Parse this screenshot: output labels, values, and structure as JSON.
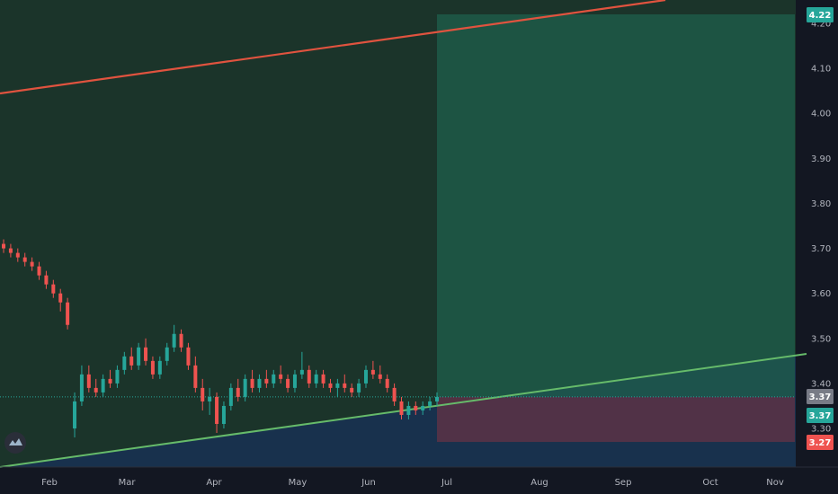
{
  "colors": {
    "background": "#131722",
    "up": "#26a69a",
    "down": "#ef5350",
    "resistance": "#e0533f",
    "support": "#66bb6a",
    "target_zone": "#1f5f4c",
    "stop_zone": "#5c3346",
    "price_line": "#26a69a"
  },
  "logo": {
    "name": "tradingview-logo-icon"
  },
  "chart_data": {
    "type": "candlestick",
    "title": "",
    "x_ticks": [
      "Feb",
      "Mar",
      "Apr",
      "May",
      "Jun",
      "Jul",
      "Aug",
      "Sep",
      "Oct",
      "Nov"
    ],
    "y_ticks": [
      "3.30",
      "3.40",
      "3.50",
      "3.60",
      "3.70",
      "3.80",
      "3.90",
      "4.00",
      "4.10",
      "4.20"
    ],
    "y_range": [
      3.24,
      4.24
    ],
    "grid": false,
    "price_labels": [
      {
        "value": "4.22",
        "role": "target",
        "color": "#26a69a"
      },
      {
        "value": "3.37",
        "role": "current",
        "color": "#787b86"
      },
      {
        "value": "3.37",
        "role": "entry",
        "color": "#26a69a"
      },
      {
        "value": "3.27",
        "role": "stop",
        "color": "#ef5350"
      }
    ],
    "trendlines": [
      {
        "name": "resistance",
        "x": [
          "Jan",
          "Sep"
        ],
        "y": [
          4.04,
          4.24
        ]
      },
      {
        "name": "support",
        "x": [
          "Jan",
          "Nov"
        ],
        "y": [
          3.24,
          3.47
        ]
      }
    ],
    "position_zone": {
      "entry": 3.37,
      "target": 4.22,
      "stop": 3.27,
      "from": "Jun",
      "to": "Nov"
    },
    "candles": [
      {
        "o": 3.71,
        "h": 3.72,
        "l": 3.69,
        "c": 3.7
      },
      {
        "o": 3.7,
        "h": 3.71,
        "l": 3.68,
        "c": 3.69
      },
      {
        "o": 3.69,
        "h": 3.7,
        "l": 3.67,
        "c": 3.68
      },
      {
        "o": 3.68,
        "h": 3.69,
        "l": 3.66,
        "c": 3.67
      },
      {
        "o": 3.67,
        "h": 3.68,
        "l": 3.65,
        "c": 3.66
      },
      {
        "o": 3.66,
        "h": 3.67,
        "l": 3.63,
        "c": 3.64
      },
      {
        "o": 3.64,
        "h": 3.65,
        "l": 3.61,
        "c": 3.62
      },
      {
        "o": 3.62,
        "h": 3.63,
        "l": 3.59,
        "c": 3.6
      },
      {
        "o": 3.6,
        "h": 3.61,
        "l": 3.56,
        "c": 3.58
      },
      {
        "o": 3.58,
        "h": 3.59,
        "l": 3.52,
        "c": 3.53
      },
      {
        "o": 3.3,
        "h": 3.38,
        "l": 3.28,
        "c": 3.36
      },
      {
        "o": 3.36,
        "h": 3.44,
        "l": 3.35,
        "c": 3.42
      },
      {
        "o": 3.42,
        "h": 3.44,
        "l": 3.38,
        "c": 3.39
      },
      {
        "o": 3.39,
        "h": 3.41,
        "l": 3.37,
        "c": 3.38
      },
      {
        "o": 3.38,
        "h": 3.42,
        "l": 3.37,
        "c": 3.41
      },
      {
        "o": 3.41,
        "h": 3.43,
        "l": 3.39,
        "c": 3.4
      },
      {
        "o": 3.4,
        "h": 3.44,
        "l": 3.39,
        "c": 3.43
      },
      {
        "o": 3.43,
        "h": 3.47,
        "l": 3.42,
        "c": 3.46
      },
      {
        "o": 3.46,
        "h": 3.48,
        "l": 3.43,
        "c": 3.44
      },
      {
        "o": 3.44,
        "h": 3.49,
        "l": 3.43,
        "c": 3.48
      },
      {
        "o": 3.48,
        "h": 3.5,
        "l": 3.44,
        "c": 3.45
      },
      {
        "o": 3.45,
        "h": 3.46,
        "l": 3.41,
        "c": 3.42
      },
      {
        "o": 3.42,
        "h": 3.46,
        "l": 3.41,
        "c": 3.45
      },
      {
        "o": 3.45,
        "h": 3.49,
        "l": 3.44,
        "c": 3.48
      },
      {
        "o": 3.48,
        "h": 3.53,
        "l": 3.47,
        "c": 3.51
      },
      {
        "o": 3.51,
        "h": 3.52,
        "l": 3.47,
        "c": 3.48
      },
      {
        "o": 3.48,
        "h": 3.49,
        "l": 3.43,
        "c": 3.44
      },
      {
        "o": 3.44,
        "h": 3.46,
        "l": 3.38,
        "c": 3.39
      },
      {
        "o": 3.39,
        "h": 3.41,
        "l": 3.34,
        "c": 3.36
      },
      {
        "o": 3.36,
        "h": 3.39,
        "l": 3.33,
        "c": 3.37
      },
      {
        "o": 3.37,
        "h": 3.38,
        "l": 3.29,
        "c": 3.31
      },
      {
        "o": 3.31,
        "h": 3.36,
        "l": 3.3,
        "c": 3.35
      },
      {
        "o": 3.35,
        "h": 3.4,
        "l": 3.34,
        "c": 3.39
      },
      {
        "o": 3.39,
        "h": 3.41,
        "l": 3.36,
        "c": 3.37
      },
      {
        "o": 3.37,
        "h": 3.42,
        "l": 3.36,
        "c": 3.41
      },
      {
        "o": 3.41,
        "h": 3.43,
        "l": 3.38,
        "c": 3.39
      },
      {
        "o": 3.39,
        "h": 3.42,
        "l": 3.38,
        "c": 3.41
      },
      {
        "o": 3.41,
        "h": 3.43,
        "l": 3.39,
        "c": 3.4
      },
      {
        "o": 3.4,
        "h": 3.43,
        "l": 3.39,
        "c": 3.42
      },
      {
        "o": 3.42,
        "h": 3.44,
        "l": 3.4,
        "c": 3.41
      },
      {
        "o": 3.41,
        "h": 3.42,
        "l": 3.38,
        "c": 3.39
      },
      {
        "o": 3.39,
        "h": 3.43,
        "l": 3.38,
        "c": 3.42
      },
      {
        "o": 3.42,
        "h": 3.47,
        "l": 3.41,
        "c": 3.43
      },
      {
        "o": 3.43,
        "h": 3.44,
        "l": 3.39,
        "c": 3.4
      },
      {
        "o": 3.4,
        "h": 3.43,
        "l": 3.39,
        "c": 3.42
      },
      {
        "o": 3.42,
        "h": 3.43,
        "l": 3.39,
        "c": 3.4
      },
      {
        "o": 3.4,
        "h": 3.41,
        "l": 3.38,
        "c": 3.39
      },
      {
        "o": 3.39,
        "h": 3.41,
        "l": 3.37,
        "c": 3.4
      },
      {
        "o": 3.4,
        "h": 3.42,
        "l": 3.38,
        "c": 3.39
      },
      {
        "o": 3.39,
        "h": 3.4,
        "l": 3.37,
        "c": 3.38
      },
      {
        "o": 3.38,
        "h": 3.41,
        "l": 3.37,
        "c": 3.4
      },
      {
        "o": 3.4,
        "h": 3.44,
        "l": 3.39,
        "c": 3.43
      },
      {
        "o": 3.43,
        "h": 3.45,
        "l": 3.41,
        "c": 3.42
      },
      {
        "o": 3.42,
        "h": 3.44,
        "l": 3.4,
        "c": 3.41
      },
      {
        "o": 3.41,
        "h": 3.42,
        "l": 3.38,
        "c": 3.39
      },
      {
        "o": 3.39,
        "h": 3.4,
        "l": 3.35,
        "c": 3.36
      },
      {
        "o": 3.36,
        "h": 3.37,
        "l": 3.32,
        "c": 3.33
      },
      {
        "o": 3.33,
        "h": 3.36,
        "l": 3.32,
        "c": 3.35
      },
      {
        "o": 3.35,
        "h": 3.36,
        "l": 3.33,
        "c": 3.34
      },
      {
        "o": 3.34,
        "h": 3.36,
        "l": 3.33,
        "c": 3.35
      },
      {
        "o": 3.35,
        "h": 3.37,
        "l": 3.34,
        "c": 3.36
      },
      {
        "o": 3.36,
        "h": 3.38,
        "l": 3.35,
        "c": 3.37
      }
    ]
  }
}
